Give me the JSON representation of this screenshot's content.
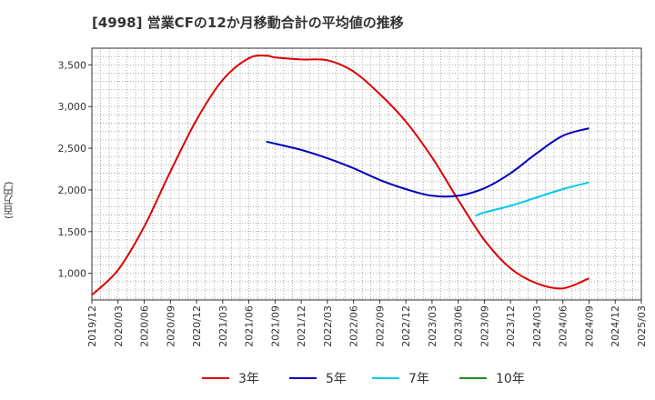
{
  "header": {
    "title": "[4998]  営業CFの12か月移動合計の平均値の推移"
  },
  "chart_data": {
    "type": "line",
    "title": "[4998]  営業CFの12か月移動合計の平均値の推移",
    "xlabel": "",
    "ylabel": "(百万円)",
    "x_ticks": [
      "2019/12",
      "2020/03",
      "2020/06",
      "2020/09",
      "2020/12",
      "2021/03",
      "2021/06",
      "2021/09",
      "2021/12",
      "2022/03",
      "2022/06",
      "2022/09",
      "2022/12",
      "2023/03",
      "2023/06",
      "2023/09",
      "2023/12",
      "2024/03",
      "2024/06",
      "2024/09",
      "2024/12",
      "2025/03"
    ],
    "y_ticks": [
      "1,000",
      "1,500",
      "2,000",
      "2,500",
      "3,000",
      "3,500"
    ],
    "y_tick_values": [
      1000,
      1500,
      2000,
      2500,
      3000,
      3500
    ],
    "ylim": [
      680,
      3700
    ],
    "grid": true,
    "legend_position": "bottom",
    "series": [
      {
        "name": "3年",
        "color": "#dd0000",
        "x": [
          "2019/12",
          "2020/03",
          "2020/06",
          "2020/09",
          "2020/12",
          "2021/03",
          "2021/06",
          "2021/08",
          "2021/09",
          "2021/12",
          "2022/03",
          "2022/06",
          "2022/09",
          "2022/12",
          "2023/03",
          "2023/06",
          "2023/09",
          "2023/12",
          "2024/03",
          "2024/06",
          "2024/09"
        ],
        "values": [
          740,
          1040,
          1560,
          2220,
          2840,
          3320,
          3580,
          3610,
          3590,
          3565,
          3555,
          3420,
          3150,
          2820,
          2390,
          1880,
          1400,
          1060,
          880,
          820,
          940
        ]
      },
      {
        "name": "5年",
        "color": "#0000bb",
        "x": [
          "2021/08",
          "2021/09",
          "2021/12",
          "2022/03",
          "2022/06",
          "2022/09",
          "2022/12",
          "2023/03",
          "2023/06",
          "2023/09",
          "2023/12",
          "2024/03",
          "2024/06",
          "2024/09"
        ],
        "values": [
          2580,
          2555,
          2480,
          2380,
          2260,
          2120,
          2010,
          1930,
          1930,
          2020,
          2200,
          2440,
          2650,
          2740
        ]
      },
      {
        "name": "7年",
        "color": "#00ccee",
        "x": [
          "2023/08",
          "2023/09",
          "2023/12",
          "2024/03",
          "2024/06",
          "2024/09"
        ],
        "values": [
          1690,
          1730,
          1810,
          1910,
          2010,
          2090
        ]
      },
      {
        "name": "10年",
        "color": "#228822",
        "x": [],
        "values": []
      }
    ]
  }
}
